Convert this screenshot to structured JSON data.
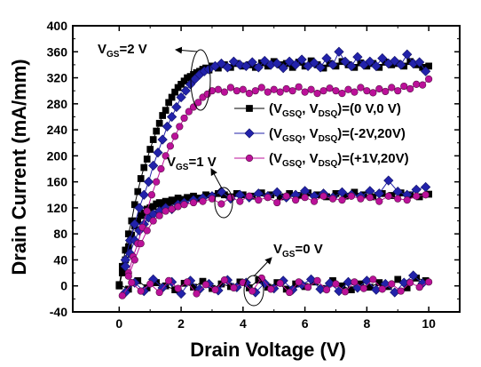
{
  "chart_data": {
    "type": "scatter",
    "title": "",
    "xlabel": "Drain Voltage (V)",
    "ylabel": "Drain Current (mA/mm)",
    "xlim": [
      -1.5,
      11
    ],
    "ylim": [
      -40,
      400
    ],
    "xticks": [
      "0",
      "2",
      "4",
      "6",
      "8",
      "10"
    ],
    "yticks": [
      "-40",
      "0",
      "40",
      "80",
      "120",
      "160",
      "200",
      "240",
      "280",
      "320",
      "360",
      "400"
    ],
    "legend": {
      "placement": "middle-right",
      "entries": [
        {
          "prefix": "(V",
          "sub1": "GSQ",
          "mid": ", V",
          "sub2": "DSQ",
          "suffix": ")=(0 V,0 V)"
        },
        {
          "prefix": "(V",
          "sub1": "GSQ",
          "mid": ", V",
          "sub2": "DSQ",
          "suffix": ")=(-2V,20V)"
        },
        {
          "prefix": "(V",
          "sub1": "GSQ",
          "mid": ", V",
          "sub2": "DSQ",
          "suffix": ")=(+1V,20V)"
        }
      ]
    },
    "annotations": [
      {
        "main": "V",
        "sub": "GS",
        "rest": "=2 V"
      },
      {
        "main": "V",
        "sub": "GS",
        "rest": "=1 V"
      },
      {
        "main": "V",
        "sub": "GS",
        "rest": "=0 V"
      }
    ],
    "series": [
      {
        "name": "(VGSQ, VDSQ)=(0 V,0 V)",
        "color": "#000000",
        "marker": "square",
        "curves": [
          {
            "vgs": "2 V",
            "x": [
              0,
              0.1,
              0.2,
              0.3,
              0.4,
              0.5,
              0.6,
              0.7,
              0.8,
              0.9,
              1.0,
              1.1,
              1.2,
              1.3,
              1.4,
              1.5,
              1.6,
              1.7,
              1.8,
              1.9,
              2.0,
              2.1,
              2.2,
              2.3,
              2.4,
              2.5,
              2.6,
              2.7,
              2.8,
              2.9,
              3.0,
              3.2,
              3.4,
              3.6,
              3.8,
              4.0,
              4.2,
              4.4,
              4.6,
              4.8,
              5.0,
              5.2,
              5.4,
              5.6,
              5.8,
              6.0,
              6.2,
              6.4,
              6.6,
              6.8,
              7.0,
              7.2,
              7.4,
              7.6,
              7.8,
              8.0,
              8.2,
              8.4,
              8.6,
              8.8,
              9.0,
              9.2,
              9.4,
              9.6,
              9.8,
              10.0
            ],
            "y": [
              0,
              30,
              55,
              80,
              100,
              125,
              145,
              165,
              182,
              195,
              210,
              225,
              238,
              250,
              262,
              270,
              282,
              290,
              298,
              305,
              310,
              315,
              320,
              322,
              325,
              328,
              330,
              333,
              335,
              332,
              338,
              335,
              340,
              336,
              342,
              338,
              340,
              336,
              343,
              338,
              345,
              340,
              342,
              336,
              344,
              338,
              346,
              340,
              335,
              342,
              338,
              345,
              340,
              336,
              343,
              338,
              342,
              336,
              344,
              340,
              342,
              338,
              345,
              340,
              336,
              338
            ]
          },
          {
            "vgs": "1 V",
            "x": [
              0,
              0.1,
              0.2,
              0.3,
              0.4,
              0.5,
              0.6,
              0.7,
              0.8,
              0.9,
              1.0,
              1.1,
              1.2,
              1.3,
              1.4,
              1.5,
              1.6,
              1.7,
              1.8,
              1.9,
              2.0,
              2.2,
              2.4,
              2.6,
              2.8,
              3.0,
              3.2,
              3.4,
              3.6,
              3.8,
              4.0,
              4.3,
              4.6,
              4.9,
              5.2,
              5.5,
              5.8,
              6.1,
              6.4,
              6.7,
              7.0,
              7.3,
              7.6,
              7.9,
              8.2,
              8.5,
              8.8,
              9.1,
              9.4,
              9.7,
              10.0
            ],
            "y": [
              0,
              20,
              40,
              60,
              78,
              92,
              100,
              108,
              112,
              118,
              120,
              122,
              126,
              128,
              125,
              130,
              128,
              132,
              130,
              135,
              133,
              136,
              138,
              135,
              140,
              138,
              142,
              140,
              137,
              142,
              140,
              138,
              143,
              140,
              137,
              142,
              139,
              143,
              140,
              137,
              142,
              138,
              144,
              140,
              137,
              142,
              139,
              143,
              140,
              137,
              141
            ]
          },
          {
            "vgs": "0 V",
            "x": [
              0,
              0.3,
              0.6,
              0.9,
              1.2,
              1.5,
              1.8,
              2.1,
              2.4,
              2.7,
              3.0,
              3.3,
              3.6,
              3.9,
              4.2,
              4.5,
              4.8,
              5.1,
              5.4,
              5.7,
              6.0,
              6.3,
              6.6,
              6.9,
              7.2,
              7.5,
              7.8,
              8.1,
              8.4,
              8.7,
              9.0,
              9.3,
              9.6,
              9.9
            ],
            "y": [
              2,
              -5,
              8,
              -3,
              5,
              0,
              -6,
              4,
              -2,
              7,
              -4,
              3,
              -1,
              6,
              -3,
              9,
              -2,
              5,
              -5,
              3,
              -1,
              6,
              -4,
              8,
              0,
              -6,
              3,
              -2,
              5,
              -1,
              10,
              -3,
              12,
              8
            ]
          }
        ]
      },
      {
        "name": "(VGSQ, VDSQ)=(-2V,20V)",
        "color": "#2222aa",
        "marker": "diamond",
        "curves": [
          {
            "vgs": "2 V",
            "x": [
              0.2,
              0.35,
              0.5,
              0.65,
              0.8,
              0.95,
              1.1,
              1.25,
              1.4,
              1.55,
              1.7,
              1.85,
              2.0,
              2.15,
              2.3,
              2.45,
              2.6,
              2.75,
              2.9,
              3.1,
              3.3,
              3.5,
              3.7,
              3.9,
              4.1,
              4.3,
              4.5,
              4.7,
              4.9,
              5.1,
              5.3,
              5.5,
              5.7,
              5.9,
              6.1,
              6.3,
              6.5,
              6.7,
              6.9,
              7.1,
              7.3,
              7.5,
              7.7,
              7.9,
              8.1,
              8.3,
              8.5,
              8.7,
              8.9,
              9.1,
              9.3,
              9.5,
              9.7,
              9.9
            ],
            "y": [
              40,
              70,
              95,
              120,
              140,
              160,
              185,
              205,
              225,
              245,
              260,
              275,
              290,
              300,
              310,
              318,
              325,
              330,
              333,
              338,
              342,
              336,
              345,
              340,
              338,
              344,
              336,
              346,
              340,
              342,
              335,
              345,
              340,
              348,
              338,
              343,
              336,
              350,
              340,
              360,
              345,
              338,
              352,
              340,
              345,
              338,
              350,
              342,
              346,
              340,
              356,
              342,
              344,
              330
            ]
          },
          {
            "vgs": "1 V",
            "x": [
              0.2,
              0.35,
              0.5,
              0.65,
              0.8,
              0.95,
              1.1,
              1.3,
              1.5,
              1.7,
              1.9,
              2.1,
              2.4,
              2.7,
              3.0,
              3.3,
              3.6,
              3.9,
              4.2,
              4.5,
              4.8,
              5.1,
              5.4,
              5.7,
              6.0,
              6.3,
              6.6,
              6.9,
              7.2,
              7.5,
              7.8,
              8.1,
              8.4,
              8.7,
              9.0,
              9.3,
              9.6,
              9.9
            ],
            "y": [
              30,
              50,
              70,
              85,
              95,
              105,
              110,
              115,
              120,
              118,
              125,
              128,
              132,
              135,
              138,
              145,
              134,
              140,
              136,
              142,
              138,
              144,
              136,
              140,
              146,
              138,
              142,
              136,
              144,
              140,
              138,
              146,
              142,
              162,
              145,
              140,
              148,
              152
            ]
          },
          {
            "vgs": "0 V",
            "x": [
              0.2,
              0.5,
              0.8,
              1.1,
              1.4,
              1.7,
              2.0,
              2.3,
              2.6,
              2.9,
              3.2,
              3.5,
              3.8,
              4.1,
              4.4,
              4.7,
              5.0,
              5.3,
              5.6,
              5.9,
              6.2,
              6.5,
              6.8,
              7.1,
              7.4,
              7.7,
              8.0,
              8.3,
              8.6,
              8.9,
              9.2,
              9.5,
              9.8
            ],
            "y": [
              -10,
              5,
              -8,
              10,
              -3,
              6,
              -12,
              8,
              -5,
              3,
              -7,
              9,
              -2,
              5,
              -10,
              4,
              -4,
              8,
              -6,
              2,
              10,
              -5,
              4,
              -8,
              6,
              -3,
              8,
              -6,
              3,
              -10,
              5,
              16,
              4
            ]
          }
        ]
      },
      {
        "name": "(VGSQ, VDSQ)=(+1V,20V)",
        "color": "#bb1199",
        "marker": "circle",
        "curves": [
          {
            "vgs": "2 V",
            "x": [
              0.3,
              0.45,
              0.6,
              0.75,
              0.9,
              1.05,
              1.2,
              1.35,
              1.5,
              1.65,
              1.8,
              1.95,
              2.1,
              2.25,
              2.4,
              2.55,
              2.7,
              2.85,
              3.0,
              3.2,
              3.4,
              3.6,
              3.8,
              4.0,
              4.2,
              4.4,
              4.6,
              4.8,
              5.0,
              5.2,
              5.4,
              5.6,
              5.8,
              6.0,
              6.2,
              6.4,
              6.6,
              6.8,
              7.0,
              7.2,
              7.4,
              7.6,
              7.8,
              8.0,
              8.2,
              8.4,
              8.6,
              8.8,
              9.0,
              9.2,
              9.4,
              9.6,
              9.8,
              10.0
            ],
            "y": [
              20,
              45,
              65,
              90,
              115,
              140,
              160,
              180,
              200,
              215,
              230,
              245,
              258,
              268,
              275,
              282,
              290,
              295,
              300,
              302,
              298,
              305,
              300,
              302,
              296,
              300,
              305,
              298,
              302,
              298,
              303,
              300,
              306,
              298,
              302,
              296,
              300,
              304,
              300,
              296,
              302,
              298,
              305,
              300,
              297,
              303,
              299,
              305,
              300,
              307,
              303,
              310,
              309,
              318
            ]
          },
          {
            "vgs": "1 V",
            "x": [
              0.3,
              0.5,
              0.7,
              0.9,
              1.1,
              1.3,
              1.5,
              1.7,
              1.9,
              2.1,
              2.4,
              2.7,
              3.0,
              3.3,
              3.6,
              3.9,
              4.2,
              4.5,
              4.8,
              5.1,
              5.4,
              5.7,
              6.0,
              6.3,
              6.6,
              6.9,
              7.2,
              7.5,
              7.8,
              8.1,
              8.4,
              8.7,
              9.0,
              9.3,
              9.6,
              9.9
            ],
            "y": [
              15,
              40,
              65,
              85,
              100,
              108,
              115,
              118,
              122,
              125,
              128,
              130,
              134,
              126,
              136,
              130,
              138,
              132,
              136,
              128,
              138,
              132,
              136,
              130,
              138,
              134,
              132,
              138,
              134,
              136,
              130,
              138,
              134,
              132,
              138,
              140
            ]
          },
          {
            "vgs": "0 V",
            "x": [
              0.1,
              0.4,
              0.7,
              1.0,
              1.3,
              1.6,
              1.9,
              2.2,
              2.5,
              2.8,
              3.1,
              3.4,
              3.7,
              4.0,
              4.3,
              4.6,
              4.9,
              5.2,
              5.5,
              5.8,
              6.1,
              6.4,
              6.7,
              7.0,
              7.3,
              7.6,
              7.9,
              8.2,
              8.5,
              8.8,
              9.1,
              9.4,
              9.7,
              10.0
            ],
            "y": [
              -15,
              5,
              -8,
              3,
              -10,
              8,
              -4,
              6,
              -12,
              2,
              -6,
              9,
              -3,
              5,
              -8,
              12,
              -5,
              4,
              -10,
              6,
              -2,
              8,
              -6,
              3,
              -9,
              6,
              -4,
              10,
              -5,
              3,
              -8,
              5,
              -2,
              6
            ]
          }
        ]
      }
    ]
  }
}
